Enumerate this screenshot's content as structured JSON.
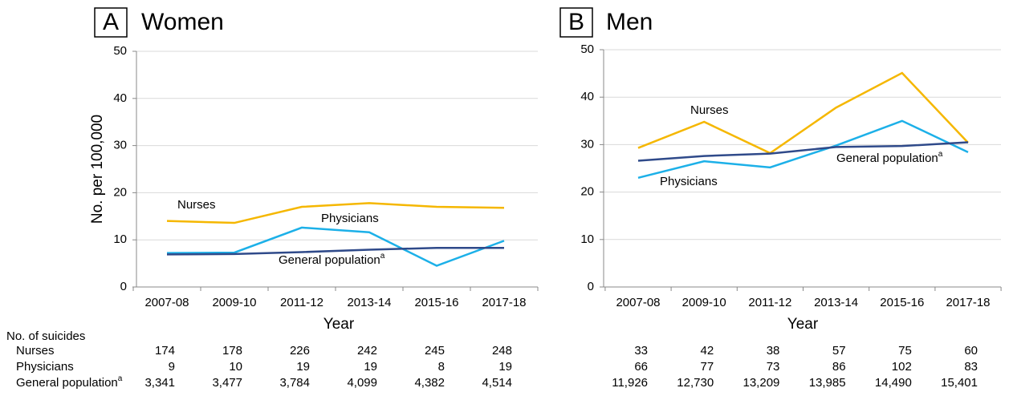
{
  "chart_data": [
    {
      "type": "line",
      "panel_label": "A",
      "title": "Women",
      "xlabel": "Year",
      "ylabel": "No. per 100,000",
      "categories": [
        "2007-08",
        "2009-10",
        "2011-12",
        "2013-14",
        "2015-16",
        "2017-18"
      ],
      "ylim": [
        0,
        50
      ],
      "yticks": [
        0,
        10,
        20,
        30,
        40,
        50
      ],
      "grid": true,
      "footnote_marker": "a",
      "series": [
        {
          "name": "Nurses",
          "color": "#f5b700",
          "values": [
            14.0,
            13.6,
            17.0,
            17.8,
            17.0,
            16.8
          ]
        },
        {
          "name": "Physicians",
          "color": "#1cb0e8",
          "values": [
            7.2,
            7.3,
            12.6,
            11.6,
            4.5,
            9.8
          ]
        },
        {
          "name": "General population",
          "color": "#2f4a8a",
          "values": [
            6.9,
            7.0,
            7.4,
            7.9,
            8.3,
            8.3
          ]
        }
      ]
    },
    {
      "type": "line",
      "panel_label": "B",
      "title": "Men",
      "xlabel": "Year",
      "categories": [
        "2007-08",
        "2009-10",
        "2011-12",
        "2013-14",
        "2015-16",
        "2017-18"
      ],
      "ylim": [
        0,
        50
      ],
      "yticks": [
        0,
        10,
        20,
        30,
        40,
        50
      ],
      "grid": true,
      "footnote_marker": "a",
      "series": [
        {
          "name": "Nurses",
          "color": "#f5b700",
          "values": [
            29.3,
            34.8,
            28.2,
            37.8,
            45.1,
            30.4
          ]
        },
        {
          "name": "Physicians",
          "color": "#1cb0e8",
          "values": [
            23.0,
            26.5,
            25.2,
            29.8,
            35.0,
            28.4
          ]
        },
        {
          "name": "General population",
          "color": "#2f4a8a",
          "values": [
            26.6,
            27.6,
            28.1,
            29.5,
            29.7,
            30.5
          ]
        }
      ]
    }
  ],
  "table": {
    "header": "No. of suicides",
    "rows": [
      {
        "label": "Nurses",
        "women": [
          "174",
          "178",
          "226",
          "242",
          "245",
          "248"
        ],
        "men": [
          "33",
          "42",
          "38",
          "57",
          "75",
          "60"
        ]
      },
      {
        "label": "Physicians",
        "women": [
          "9",
          "10",
          "19",
          "19",
          "8",
          "19"
        ],
        "men": [
          "66",
          "77",
          "73",
          "86",
          "102",
          "83"
        ]
      },
      {
        "label": "General population",
        "marker": "a",
        "women": [
          "3,341",
          "3,477",
          "3,784",
          "4,099",
          "4,382",
          "4,514"
        ],
        "men": [
          "11,926",
          "12,730",
          "13,209",
          "13,985",
          "14,490",
          "15,401"
        ]
      }
    ]
  }
}
